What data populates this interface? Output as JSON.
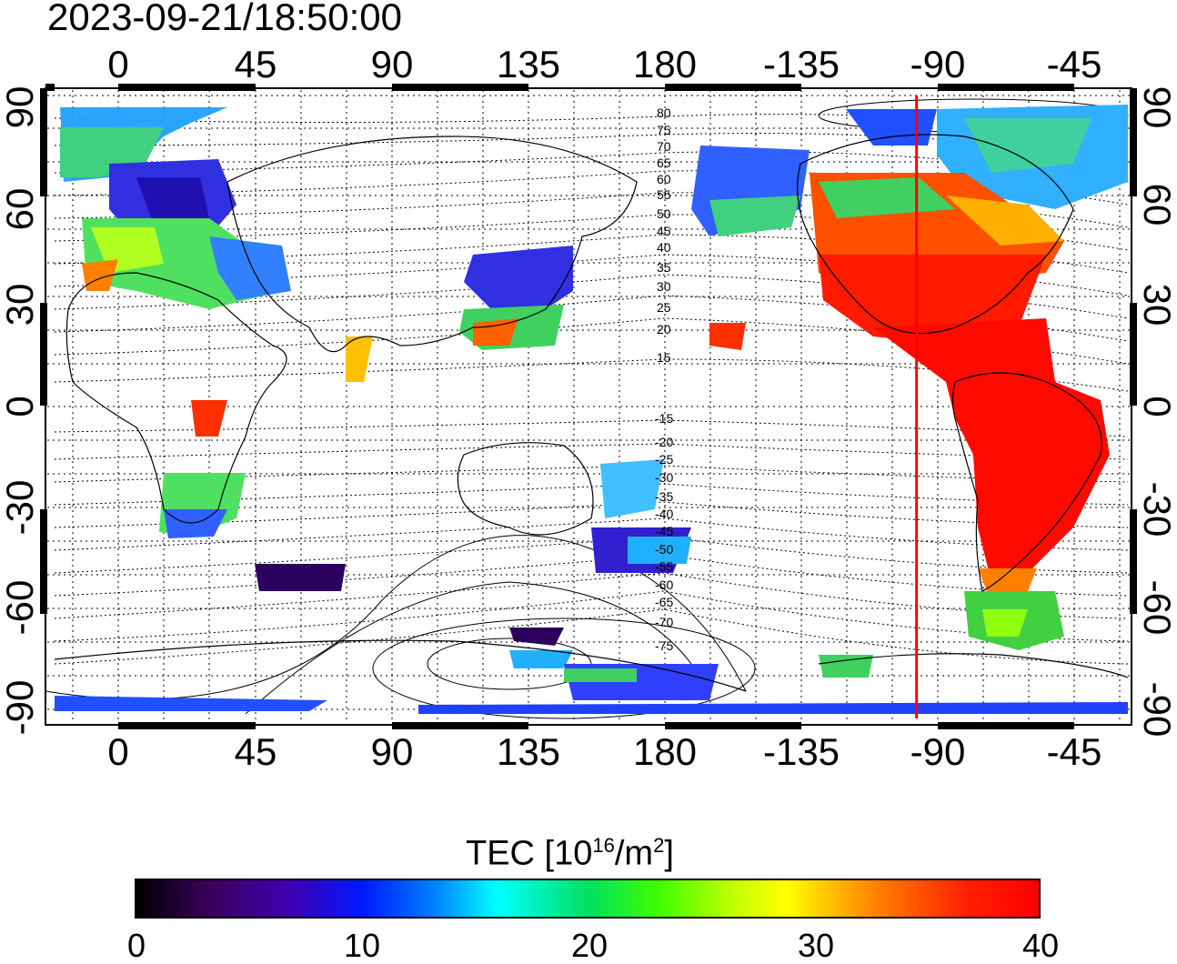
{
  "timestamp": "2023-09-21/18:50:00",
  "map": {
    "lon_ticks_top": [
      "0",
      "45",
      "90",
      "135",
      "180",
      "-135",
      "-90",
      "-45"
    ],
    "lon_ticks_bottom": [
      "0",
      "45",
      "90",
      "135",
      "180",
      "-135",
      "-90",
      "-45"
    ],
    "lat_ticks_left": [
      "90",
      "60",
      "30",
      "0",
      "-30",
      "-60",
      "-90"
    ],
    "lat_ticks_right": [
      "90",
      "60",
      "30",
      "0",
      "-30",
      "-60",
      "-90"
    ],
    "contour_labels_north": [
      "80",
      "75",
      "70",
      "65",
      "60",
      "55",
      "50",
      "45",
      "40",
      "35",
      "30",
      "25",
      "20",
      "15"
    ],
    "contour_labels_south": [
      "-15",
      "-20",
      "-25",
      "-30",
      "-35",
      "-40",
      "-45",
      "-50",
      "-55",
      "-60",
      "-65",
      "-70",
      "-75"
    ],
    "marker_line_longitude": -97,
    "marker_line_color": "#ff0000",
    "lat_range": [
      -90,
      90
    ],
    "lon_range": [
      -12,
      348
    ]
  },
  "colorbar": {
    "title": "TEC  [10",
    "title_exp": "16",
    "title_unit": "/m",
    "title_unit_exp": "2",
    "title_close": "]",
    "ticks": [
      "0",
      "10",
      "20",
      "30",
      "40"
    ],
    "range": [
      0,
      40
    ],
    "colormap": [
      "#000000",
      "#3f00b0",
      "#0018ff",
      "#00ffff",
      "#00e060",
      "#ffff00",
      "#ff8000",
      "#ff0000"
    ]
  }
}
